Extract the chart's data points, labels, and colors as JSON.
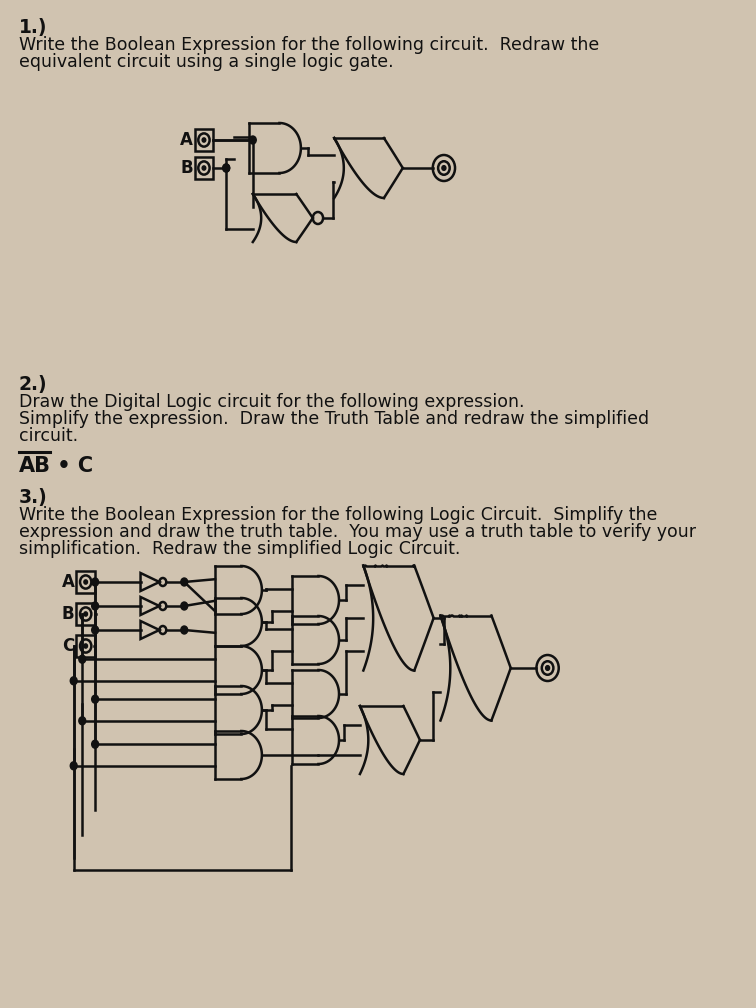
{
  "bg_color": "#d0c3b0",
  "line_color": "#111111",
  "lw": 1.8,
  "title1": "1.)",
  "line1a": "Write the Boolean Expression for the following circuit.  Redraw the",
  "line1b": "equivalent circuit using a single logic gate.",
  "title2": "2.)",
  "line2a": "Draw the Digital Logic circuit for the following expression.",
  "line2b": "Simplify the expression.  Draw the Truth Table and redraw the simplified",
  "line2c": "circuit.",
  "expr_AB": "AB",
  "expr_rest": " • C",
  "title3": "3.)",
  "line3a": "Write the Boolean Expression for the following Logic Circuit.  Simplify the",
  "line3b": "expression and draw the truth table.  You may use a truth table to verify your",
  "line3c": "simplification.  Redraw the simplified Logic Circuit."
}
